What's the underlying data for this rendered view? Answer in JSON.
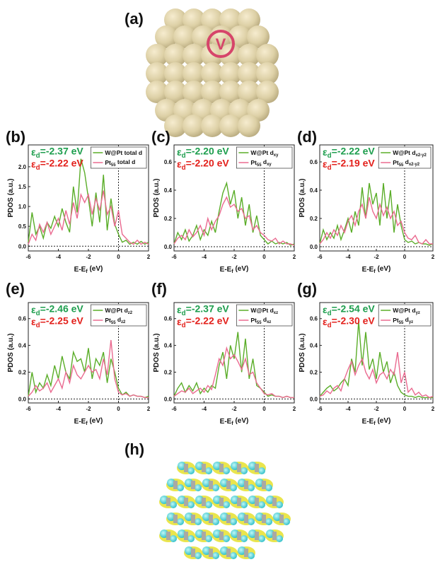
{
  "figure": {
    "panel_a_label": "(a)",
    "marker": "V",
    "panel_h_label": "(h)"
  },
  "chart_data": [
    {
      "type": "line",
      "panel": "(b)",
      "annotations": [
        {
          "text": "εd=-2.37 eV",
          "color": "#1e9e4e"
        },
        {
          "text": "εd=-2.22 eV",
          "color": "#e3211c"
        }
      ],
      "ylabel": "PDOS (a.u.)",
      "xlabel": "E-Ef (eV)",
      "x": [
        -6,
        -5.75,
        -5.5,
        -5.25,
        -5,
        -4.75,
        -4.5,
        -4.25,
        -4,
        -3.75,
        -3.5,
        -3.25,
        -3,
        -2.75,
        -2.5,
        -2.25,
        -2,
        -1.75,
        -1.5,
        -1.25,
        -1,
        -0.75,
        -0.5,
        -0.25,
        0,
        0.25,
        0.5,
        0.75,
        1,
        1.25,
        1.5,
        1.75,
        2
      ],
      "xlim": [
        -6,
        2
      ],
      "xticks": [
        -6,
        -4,
        -2,
        0,
        2
      ],
      "ylim": [
        -0.12,
        2.55
      ],
      "yticks": [
        {
          "value": 0,
          "label": "0.0"
        },
        {
          "value": 0.5,
          "label": "0.5"
        },
        {
          "value": 1,
          "label": "1.0"
        },
        {
          "value": 1.5,
          "label": "1.5"
        },
        {
          "value": 2,
          "label": "2.0"
        }
      ],
      "series": [
        {
          "name": "W@Pt total d",
          "color": "#5aad28",
          "values": [
            0.1,
            0.85,
            0.3,
            0.5,
            0.2,
            0.6,
            0.45,
            0.75,
            0.5,
            0.95,
            0.6,
            0.35,
            1.5,
            0.85,
            2.2,
            1.85,
            1.2,
            0.5,
            1.35,
            0.6,
            1.8,
            0.4,
            1.2,
            0.55,
            0.3,
            0.1,
            0.15,
            0.05,
            0.1,
            0.05,
            0.12,
            0.05,
            0.1
          ]
        },
        {
          "name": "Pt55 total d",
          "color": "#ea6a90",
          "values": [
            0.05,
            0.3,
            0.15,
            0.55,
            0.35,
            0.6,
            0.3,
            0.5,
            0.7,
            0.4,
            0.9,
            0.55,
            1.1,
            0.7,
            1.3,
            1.1,
            1.3,
            0.8,
            1.2,
            0.9,
            1.4,
            0.8,
            1.0,
            0.5,
            0.9,
            0.3,
            0.2,
            0.1,
            0.05,
            0.15,
            0.05,
            0.1,
            0.05
          ]
        }
      ]
    },
    {
      "type": "line",
      "panel": "(c)",
      "annotations": [
        {
          "text": "εd=-2.20 eV",
          "color": "#1e9e4e"
        },
        {
          "text": "εd=-2.20 eV",
          "color": "#e3211c"
        }
      ],
      "ylabel": "PDOS (a.u.)",
      "xlabel": "E-Ef (eV)",
      "x": [
        -6,
        -5.75,
        -5.5,
        -5.25,
        -5,
        -4.75,
        -4.5,
        -4.25,
        -4,
        -3.75,
        -3.5,
        -3.25,
        -3,
        -2.75,
        -2.5,
        -2.25,
        -2,
        -1.75,
        -1.5,
        -1.25,
        -1,
        -0.75,
        -0.5,
        -0.25,
        0,
        0.25,
        0.5,
        0.75,
        1,
        1.25,
        1.5,
        1.75,
        2
      ],
      "xlim": [
        -6,
        2
      ],
      "xticks": [
        -6,
        -4,
        -2,
        0,
        2
      ],
      "ylim": [
        -0.03,
        0.72
      ],
      "yticks": [
        {
          "value": 0,
          "label": "0.0"
        },
        {
          "value": 0.2,
          "label": "0.2"
        },
        {
          "value": 0.4,
          "label": "0.4"
        },
        {
          "value": 0.6,
          "label": "0.6"
        }
      ],
      "series": [
        {
          "name": "W@Pt dxy",
          "color": "#5aad28",
          "values": [
            0.02,
            0.1,
            0.05,
            0.12,
            0.04,
            0.08,
            0.15,
            0.05,
            0.12,
            0.08,
            0.18,
            0.1,
            0.25,
            0.38,
            0.45,
            0.3,
            0.4,
            0.2,
            0.35,
            0.15,
            0.3,
            0.1,
            0.22,
            0.08,
            0.05,
            0.02,
            0.04,
            0.02,
            0.03,
            0.02,
            0.03,
            0.01,
            0.02
          ]
        },
        {
          "name": "Pt55 dxy",
          "color": "#ea6a90",
          "values": [
            0.02,
            0.06,
            0.08,
            0.05,
            0.12,
            0.07,
            0.1,
            0.15,
            0.08,
            0.2,
            0.12,
            0.18,
            0.22,
            0.3,
            0.35,
            0.28,
            0.3,
            0.25,
            0.27,
            0.2,
            0.22,
            0.12,
            0.15,
            0.1,
            0.08,
            0.05,
            0.04,
            0.06,
            0.02,
            0.04,
            0.02,
            0.02,
            0.01
          ]
        }
      ]
    },
    {
      "type": "line",
      "panel": "(d)",
      "annotations": [
        {
          "text": "εd=-2.22 eV",
          "color": "#1e9e4e"
        },
        {
          "text": "εd=-2.19 eV",
          "color": "#e3211c"
        }
      ],
      "ylabel": "PDOS (a.u.)",
      "xlabel": "E-Ef (eV)",
      "x": [
        -6,
        -5.75,
        -5.5,
        -5.25,
        -5,
        -4.75,
        -4.5,
        -4.25,
        -4,
        -3.75,
        -3.5,
        -3.25,
        -3,
        -2.75,
        -2.5,
        -2.25,
        -2,
        -1.75,
        -1.5,
        -1.25,
        -1,
        -0.75,
        -0.5,
        -0.25,
        0,
        0.25,
        0.5,
        0.75,
        1,
        1.25,
        1.5,
        1.75,
        2
      ],
      "xlim": [
        -6,
        2
      ],
      "xticks": [
        -6,
        -4,
        -2,
        0,
        2
      ],
      "ylim": [
        -0.03,
        0.72
      ],
      "yticks": [
        {
          "value": 0,
          "label": "0.0"
        },
        {
          "value": 0.2,
          "label": "0.2"
        },
        {
          "value": 0.4,
          "label": "0.4"
        },
        {
          "value": 0.6,
          "label": "0.6"
        }
      ],
      "series": [
        {
          "name": "W@Pt dx2-y2",
          "color": "#5aad28",
          "values": [
            0.02,
            0.12,
            0.05,
            0.1,
            0.06,
            0.15,
            0.05,
            0.12,
            0.2,
            0.1,
            0.25,
            0.15,
            0.42,
            0.2,
            0.45,
            0.3,
            0.38,
            0.15,
            0.45,
            0.2,
            0.4,
            0.1,
            0.3,
            0.15,
            0.05,
            0.03,
            0.04,
            0.02,
            0.03,
            0.02,
            0.02,
            0.01,
            0.02
          ]
        },
        {
          "name": "Pt55 dx2-y2",
          "color": "#ea6a90",
          "values": [
            0.02,
            0.05,
            0.1,
            0.06,
            0.12,
            0.08,
            0.15,
            0.1,
            0.18,
            0.22,
            0.15,
            0.25,
            0.3,
            0.2,
            0.35,
            0.25,
            0.2,
            0.3,
            0.22,
            0.28,
            0.2,
            0.25,
            0.15,
            0.18,
            0.1,
            0.06,
            0.05,
            0.08,
            0.03,
            0.02,
            0.05,
            0.02,
            0.02
          ]
        }
      ]
    },
    {
      "type": "line",
      "panel": "(e)",
      "annotations": [
        {
          "text": "εd=-2.46 eV",
          "color": "#1e9e4e"
        },
        {
          "text": "εd=-2.25 eV",
          "color": "#e3211c"
        }
      ],
      "ylabel": "PDOS (a.u.)",
      "xlabel": "E-Ef (eV)",
      "x": [
        -6,
        -5.75,
        -5.5,
        -5.25,
        -5,
        -4.75,
        -4.5,
        -4.25,
        -4,
        -3.75,
        -3.5,
        -3.25,
        -3,
        -2.75,
        -2.5,
        -2.25,
        -2,
        -1.75,
        -1.5,
        -1.25,
        -1,
        -0.75,
        -0.5,
        -0.25,
        0,
        0.25,
        0.5,
        0.75,
        1,
        1.25,
        1.5,
        1.75,
        2
      ],
      "xlim": [
        -6,
        2
      ],
      "xticks": [
        -6,
        -4,
        -2,
        0,
        2
      ],
      "ylim": [
        -0.03,
        0.72
      ],
      "yticks": [
        {
          "value": 0,
          "label": "0.0"
        },
        {
          "value": 0.2,
          "label": "0.2"
        },
        {
          "value": 0.4,
          "label": "0.4"
        },
        {
          "value": 0.6,
          "label": "0.6"
        }
      ],
      "series": [
        {
          "name": "W@Pt dz2",
          "color": "#5aad28",
          "values": [
            0.02,
            0.2,
            0.05,
            0.12,
            0.08,
            0.18,
            0.1,
            0.25,
            0.15,
            0.32,
            0.2,
            0.15,
            0.35,
            0.28,
            0.3,
            0.2,
            0.38,
            0.15,
            0.3,
            0.25,
            0.35,
            0.12,
            0.3,
            0.2,
            0.08,
            0.03,
            0.05,
            0.02,
            0.03,
            0.02,
            0.02,
            0.01,
            0.02
          ]
        },
        {
          "name": "Pt55 dz2",
          "color": "#ea6a90",
          "values": [
            0.02,
            0.05,
            0.1,
            0.06,
            0.08,
            0.12,
            0.05,
            0.1,
            0.15,
            0.08,
            0.2,
            0.12,
            0.25,
            0.18,
            0.15,
            0.2,
            0.25,
            0.2,
            0.22,
            0.15,
            0.3,
            0.18,
            0.44,
            0.15,
            0.05,
            0.03,
            0.04,
            0.02,
            0.03,
            0.02,
            0.02,
            0.01,
            0.01
          ]
        }
      ]
    },
    {
      "type": "line",
      "panel": "(f)",
      "annotations": [
        {
          "text": "εd=-2.37 eV",
          "color": "#1e9e4e"
        },
        {
          "text": "εd=-2.22 eV",
          "color": "#e3211c"
        }
      ],
      "ylabel": "PDOS (a.u.)",
      "xlabel": "E-Ef (eV)",
      "x": [
        -6,
        -5.75,
        -5.5,
        -5.25,
        -5,
        -4.75,
        -4.5,
        -4.25,
        -4,
        -3.75,
        -3.5,
        -3.25,
        -3,
        -2.75,
        -2.5,
        -2.25,
        -2,
        -1.75,
        -1.5,
        -1.25,
        -1,
        -0.75,
        -0.5,
        -0.25,
        0,
        0.25,
        0.5,
        0.75,
        1,
        1.25,
        1.5,
        1.75,
        2
      ],
      "xlim": [
        -6,
        2
      ],
      "xticks": [
        -6,
        -4,
        -2,
        0,
        2
      ],
      "ylim": [
        -0.03,
        0.72
      ],
      "yticks": [
        {
          "value": 0,
          "label": "0.0"
        },
        {
          "value": 0.2,
          "label": "0.2"
        },
        {
          "value": 0.4,
          "label": "0.4"
        },
        {
          "value": 0.6,
          "label": "0.6"
        }
      ],
      "series": [
        {
          "name": "W@Pt dxz",
          "color": "#5aad28",
          "values": [
            0.02,
            0.08,
            0.12,
            0.05,
            0.1,
            0.06,
            0.12,
            0.04,
            0.08,
            0.05,
            0.1,
            0.08,
            0.25,
            0.35,
            0.15,
            0.4,
            0.3,
            0.5,
            0.2,
            0.45,
            0.15,
            0.3,
            0.1,
            0.08,
            0.05,
            0.02,
            0.03,
            0.02,
            0.02,
            0.01,
            0.02,
            0.01,
            0.01
          ]
        },
        {
          "name": "Pt55 dxz",
          "color": "#ea6a90",
          "values": [
            0.02,
            0.04,
            0.06,
            0.05,
            0.08,
            0.04,
            0.06,
            0.08,
            0.05,
            0.1,
            0.07,
            0.18,
            0.3,
            0.25,
            0.38,
            0.3,
            0.33,
            0.28,
            0.22,
            0.3,
            0.18,
            0.2,
            0.12,
            0.08,
            0.04,
            0.03,
            0.04,
            0.02,
            0.02,
            0.01,
            0.02,
            0.01,
            0.01
          ]
        }
      ]
    },
    {
      "type": "line",
      "panel": "(g)",
      "annotations": [
        {
          "text": "εd=-2.54 eV",
          "color": "#1e9e4e"
        },
        {
          "text": "εd=-2.30 eV",
          "color": "#e3211c"
        }
      ],
      "ylabel": "PDOS (a.u.)",
      "xlabel": "E-Ef (eV)",
      "x": [
        -6,
        -5.75,
        -5.5,
        -5.25,
        -5,
        -4.75,
        -4.5,
        -4.25,
        -4,
        -3.75,
        -3.5,
        -3.25,
        -3,
        -2.75,
        -2.5,
        -2.25,
        -2,
        -1.75,
        -1.5,
        -1.25,
        -1,
        -0.75,
        -0.5,
        -0.25,
        0,
        0.25,
        0.5,
        0.75,
        1,
        1.25,
        1.5,
        1.75,
        2
      ],
      "xlim": [
        -6,
        2
      ],
      "xticks": [
        -6,
        -4,
        -2,
        0,
        2
      ],
      "ylim": [
        -0.03,
        0.72
      ],
      "yticks": [
        {
          "value": 0,
          "label": "0.0"
        },
        {
          "value": 0.2,
          "label": "0.2"
        },
        {
          "value": 0.4,
          "label": "0.4"
        },
        {
          "value": 0.6,
          "label": "0.6"
        }
      ],
      "series": [
        {
          "name": "W@Pt dyz",
          "color": "#5aad28",
          "values": [
            0.02,
            0.05,
            0.08,
            0.1,
            0.06,
            0.08,
            0.12,
            0.15,
            0.1,
            0.3,
            0.2,
            0.58,
            0.25,
            0.5,
            0.22,
            0.3,
            0.15,
            0.35,
            0.2,
            0.28,
            0.12,
            0.2,
            0.1,
            0.05,
            0.03,
            0.02,
            0.02,
            0.01,
            0.02,
            0.01,
            0.01,
            0.01,
            0.01
          ]
        },
        {
          "name": "Pt55 dyz",
          "color": "#ea6a90",
          "values": [
            0.02,
            0.03,
            0.06,
            0.04,
            0.08,
            0.1,
            0.06,
            0.15,
            0.22,
            0.28,
            0.18,
            0.25,
            0.3,
            0.2,
            0.15,
            0.22,
            0.12,
            0.18,
            0.2,
            0.15,
            0.22,
            0.18,
            0.35,
            0.12,
            0.2,
            0.05,
            0.08,
            0.03,
            0.05,
            0.02,
            0.03,
            0.01,
            0.02
          ]
        }
      ]
    }
  ]
}
